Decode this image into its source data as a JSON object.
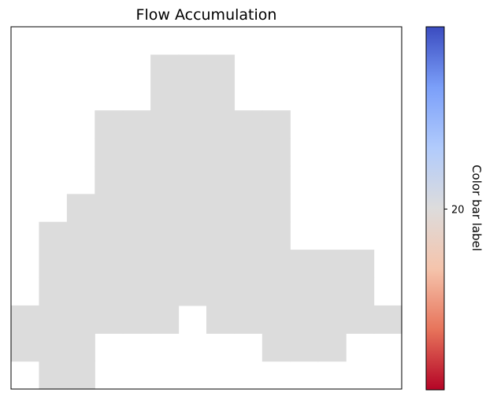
{
  "chart_data": {
    "type": "heatmap",
    "title": "Flow Accumulation",
    "xlabel": "",
    "ylabel": "",
    "grid": false,
    "x_ticks_visible": false,
    "y_ticks_visible": false,
    "n_rows": 13,
    "n_cols": 14,
    "fill_value": 20,
    "nodata_color": "#ffffff",
    "cell_color": "#dcdcdc",
    "mask": [
      [
        0,
        0,
        0,
        0,
        0,
        0,
        0,
        0,
        0,
        0,
        0,
        0,
        0,
        0
      ],
      [
        0,
        0,
        0,
        0,
        0,
        1,
        1,
        1,
        0,
        0,
        0,
        0,
        0,
        0
      ],
      [
        0,
        0,
        0,
        0,
        0,
        1,
        1,
        1,
        0,
        0,
        0,
        0,
        0,
        0
      ],
      [
        0,
        0,
        0,
        1,
        1,
        1,
        1,
        1,
        1,
        1,
        0,
        0,
        0,
        0
      ],
      [
        0,
        0,
        0,
        1,
        1,
        1,
        1,
        1,
        1,
        1,
        0,
        0,
        0,
        0
      ],
      [
        0,
        0,
        0,
        1,
        1,
        1,
        1,
        1,
        1,
        1,
        0,
        0,
        0,
        0
      ],
      [
        0,
        0,
        1,
        1,
        1,
        1,
        1,
        1,
        1,
        1,
        0,
        0,
        0,
        0
      ],
      [
        0,
        1,
        1,
        1,
        1,
        1,
        1,
        1,
        1,
        1,
        0,
        0,
        0,
        0
      ],
      [
        0,
        1,
        1,
        1,
        1,
        1,
        1,
        1,
        1,
        1,
        1,
        1,
        1,
        0
      ],
      [
        0,
        1,
        1,
        1,
        1,
        1,
        1,
        1,
        1,
        1,
        1,
        1,
        1,
        0
      ],
      [
        1,
        1,
        1,
        1,
        1,
        1,
        0,
        1,
        1,
        1,
        1,
        1,
        1,
        1
      ],
      [
        1,
        1,
        1,
        0,
        0,
        0,
        0,
        0,
        0,
        1,
        1,
        1,
        0,
        0
      ],
      [
        0,
        1,
        1,
        0,
        0,
        0,
        0,
        0,
        0,
        0,
        0,
        0,
        0,
        0
      ]
    ],
    "colorbar": {
      "label": "Color bar label",
      "colormap": "coolwarm",
      "ticks": [
        20
      ],
      "tick_labels": [
        "20"
      ],
      "stops": [
        "#b40426",
        "#e7745b",
        "#f5c4ac",
        "#dddcdc",
        "#b1cbfc",
        "#7b9ff9",
        "#3b4cc0"
      ]
    }
  }
}
